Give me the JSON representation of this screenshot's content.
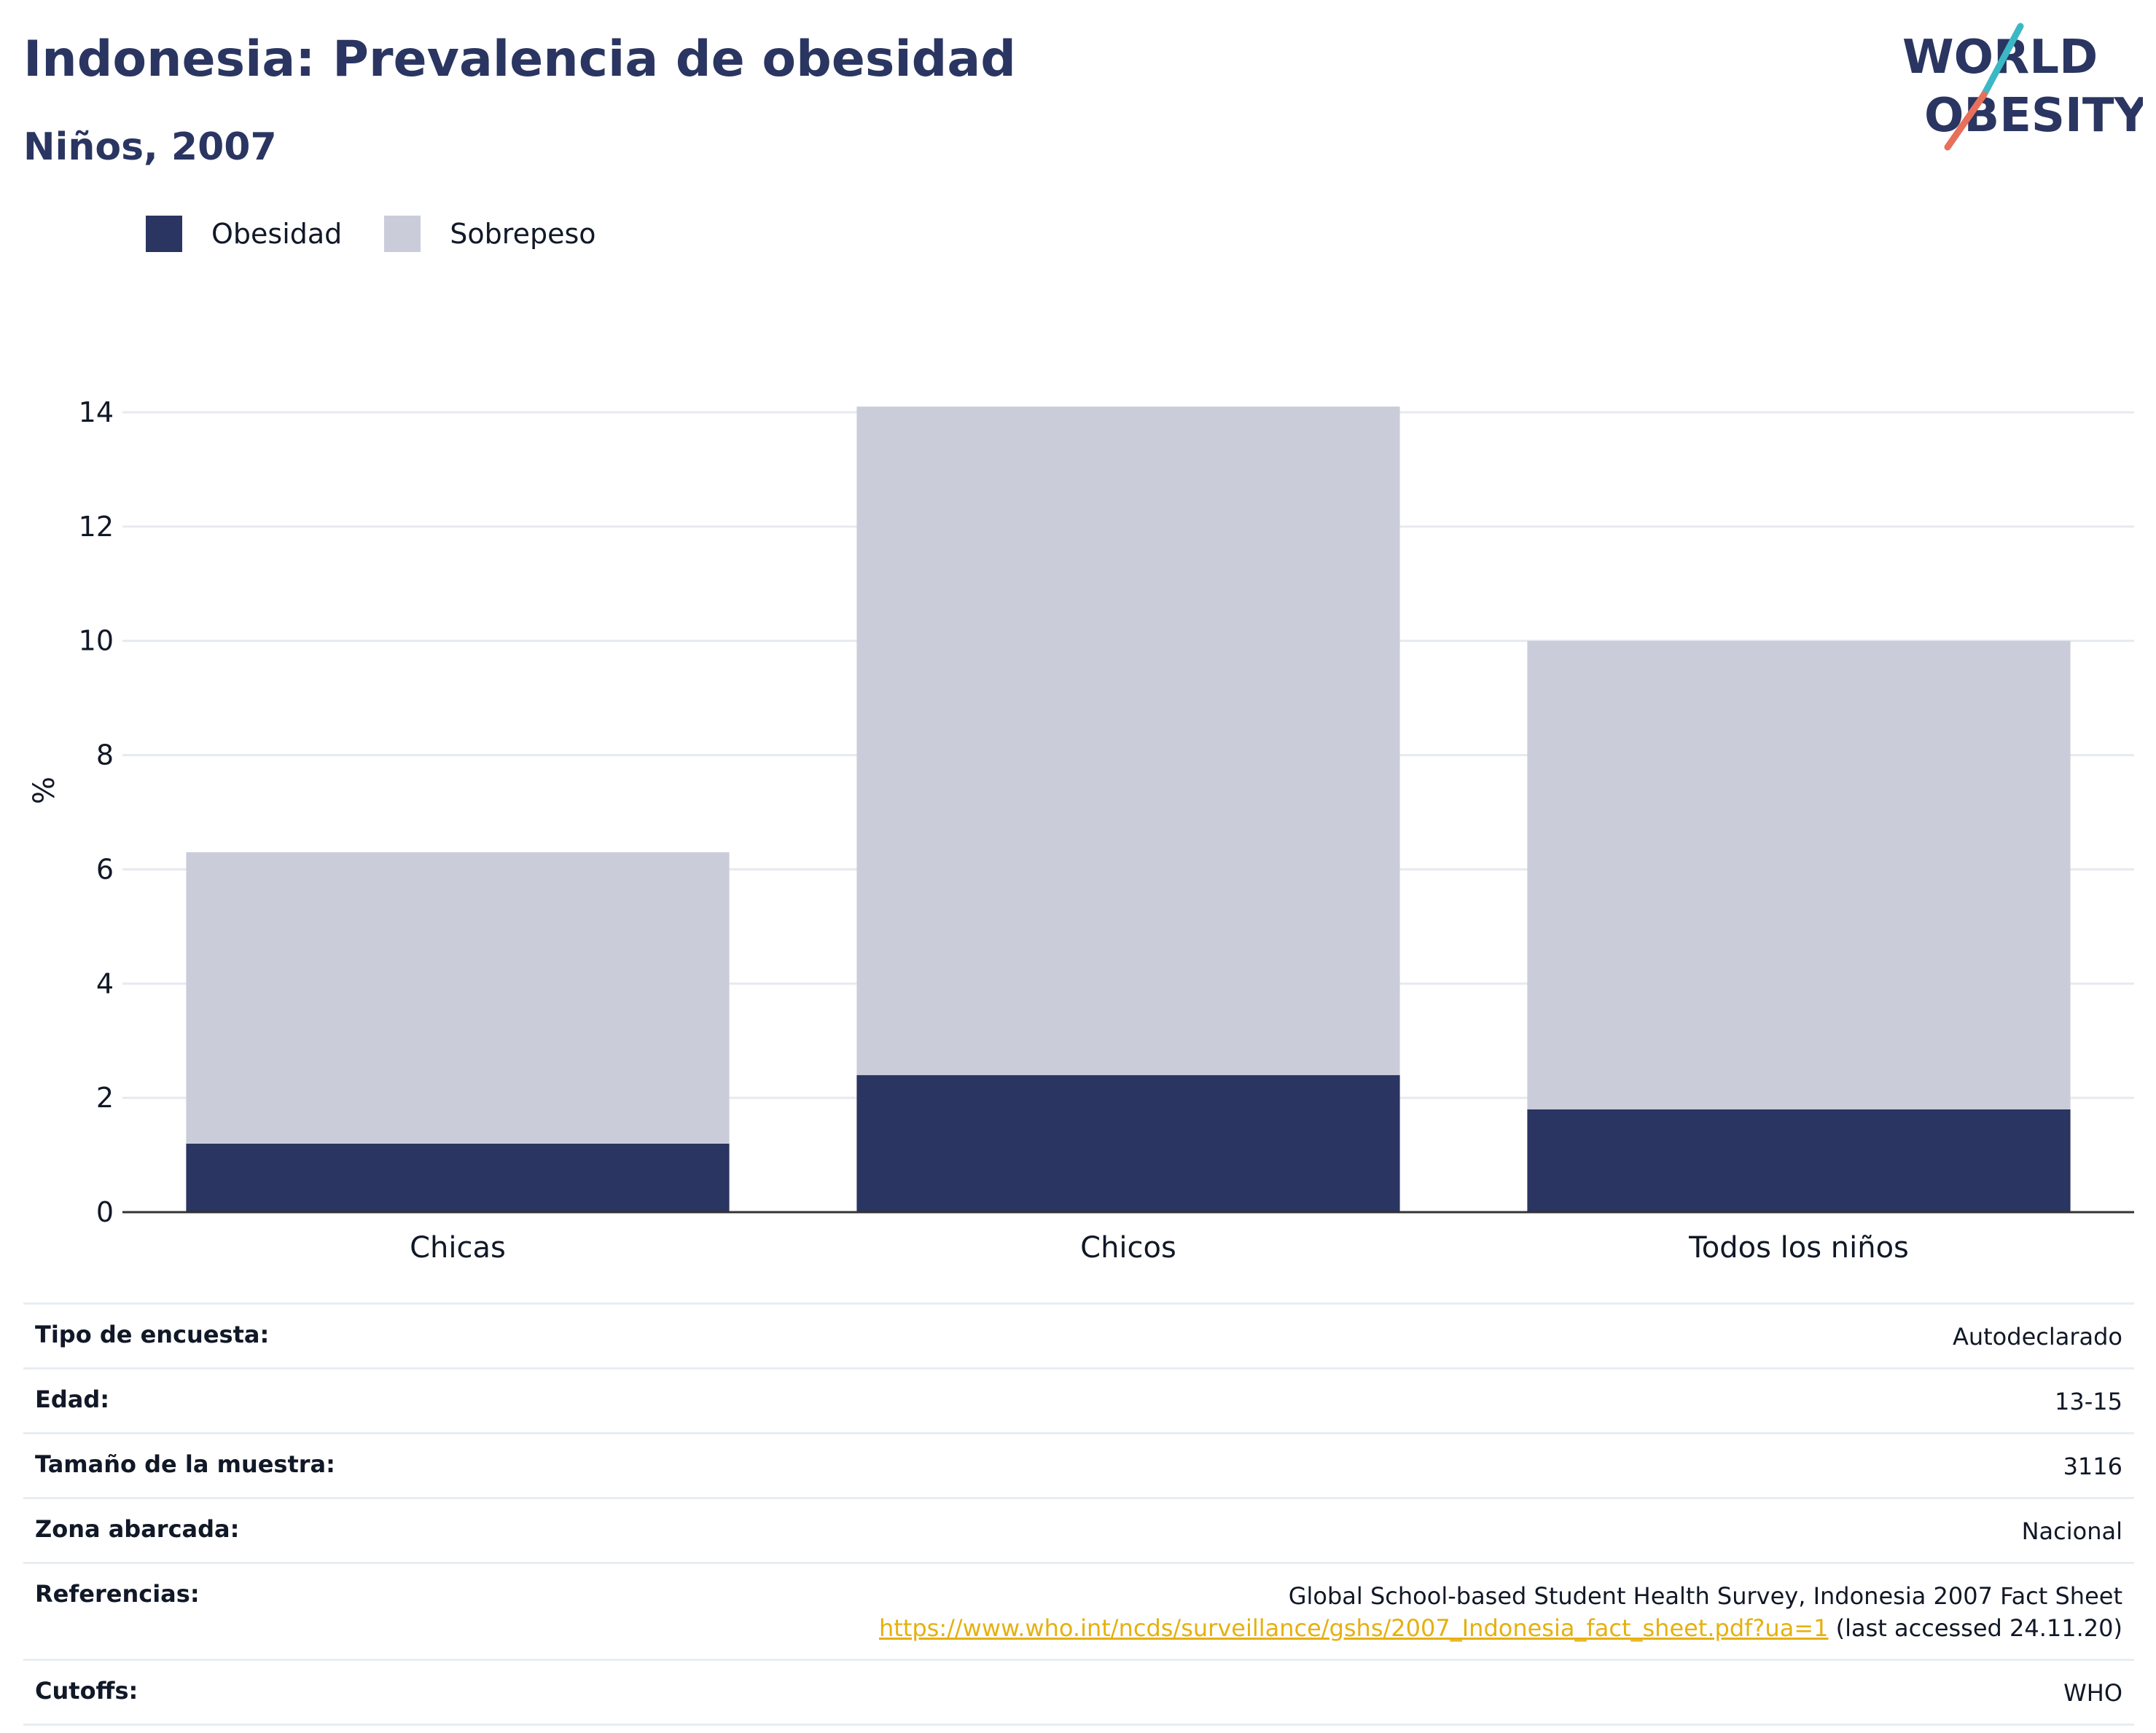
{
  "header": {
    "title": "Indonesia: Prevalencia de obesidad",
    "subtitle": "Niños, 2007"
  },
  "logo": {
    "line1": "WORLD",
    "line2": "OBESITY",
    "accent_teal": "#3bb8c4",
    "accent_coral": "#e8705a"
  },
  "colors": {
    "obesity": "#2a3561",
    "overweight": "#cacdd9",
    "grid": "#e6eaf0",
    "axis": "#333333"
  },
  "chart_data": {
    "type": "bar",
    "stacked": true,
    "categories": [
      "Chicas",
      "Chicos",
      "Todos los niños"
    ],
    "series": [
      {
        "name": "Obesidad",
        "values": [
          1.2,
          2.4,
          1.8
        ]
      },
      {
        "name": "Sobrepeso",
        "values": [
          5.1,
          11.7,
          8.2
        ]
      }
    ],
    "totals": [
      6.3,
      14.1,
      10.0
    ],
    "ylabel": "%",
    "ylim": [
      0,
      14
    ],
    "yticks": [
      0,
      2,
      4,
      6,
      8,
      10,
      12,
      14
    ],
    "grid": true,
    "legend_position": "top-left"
  },
  "survey": {
    "rows": [
      {
        "label": "Tipo de encuesta:",
        "value": "Autodeclarado"
      },
      {
        "label": "Edad:",
        "value": "13-15"
      },
      {
        "label": "Tamaño de la muestra:",
        "value": "3116"
      },
      {
        "label": "Zona abarcada:",
        "value": "Nacional"
      }
    ],
    "references": {
      "label": "Referencias:",
      "line1": "Global School-based Student Health Survey, Indonesia 2007 Fact Sheet",
      "link": "https://www.who.int/ncds/surveillance/gshs/2007_Indonesia_fact_sheet.pdf?ua=1",
      "suffix": " (last accessed 24.11.20)"
    },
    "cutoffs": {
      "label": "Cutoffs:",
      "value": "WHO"
    }
  }
}
